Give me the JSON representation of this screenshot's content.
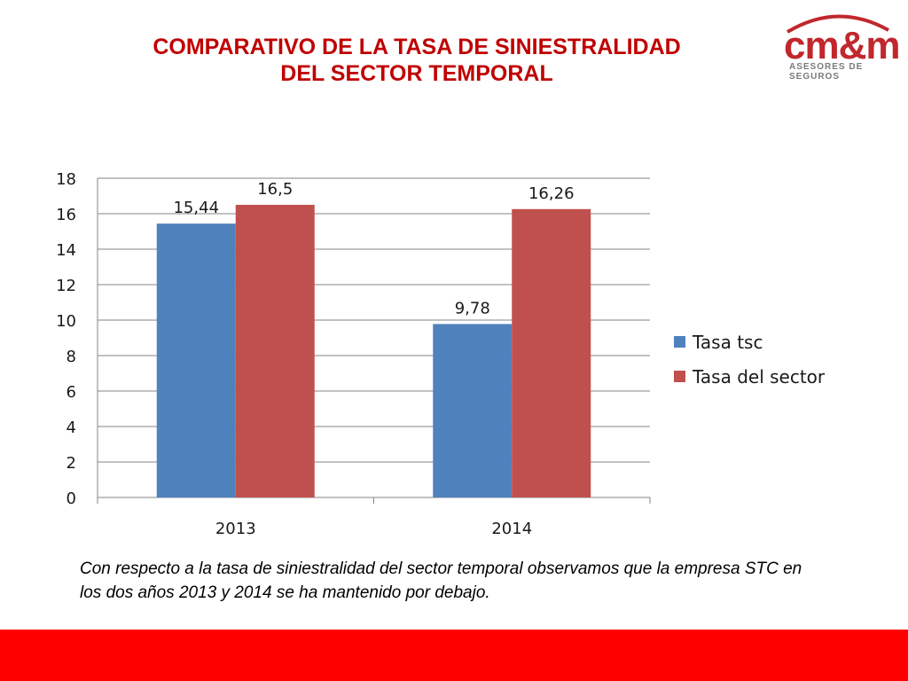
{
  "slide": {
    "title_line1": "COMPARATIVO DE LA  TASA DE SINIESTRALIDAD",
    "title_line2": "DEL SECTOR TEMPORAL",
    "caption": "Con respecto a la tasa de siniestralidad del sector temporal observamos que la empresa STC en los dos años 2013 y 2014 se ha mantenido por debajo.",
    "title_color": "#c00000",
    "footer_color": "#ff0000"
  },
  "logo": {
    "mark": "cm&m",
    "subtitle": "ASESORES DE SEGUROS",
    "color": "#c1272d"
  },
  "chart_data": {
    "type": "bar",
    "categories": [
      "2013",
      "2014"
    ],
    "series": [
      {
        "name": "Tasa tsc",
        "values": [
          15.44,
          9.78
        ],
        "labels": [
          "15,44",
          "9,78"
        ],
        "color": "#4f81bd"
      },
      {
        "name": "Tasa del sector",
        "values": [
          16.5,
          16.26
        ],
        "labels": [
          "16,5",
          "16,26"
        ],
        "color": "#c0504d"
      }
    ],
    "ylim": [
      0,
      18
    ],
    "yticks": [
      0,
      2,
      4,
      6,
      8,
      10,
      12,
      14,
      16,
      18
    ],
    "grid": true,
    "legend_position": "right",
    "title": "",
    "xlabel": "",
    "ylabel": ""
  }
}
